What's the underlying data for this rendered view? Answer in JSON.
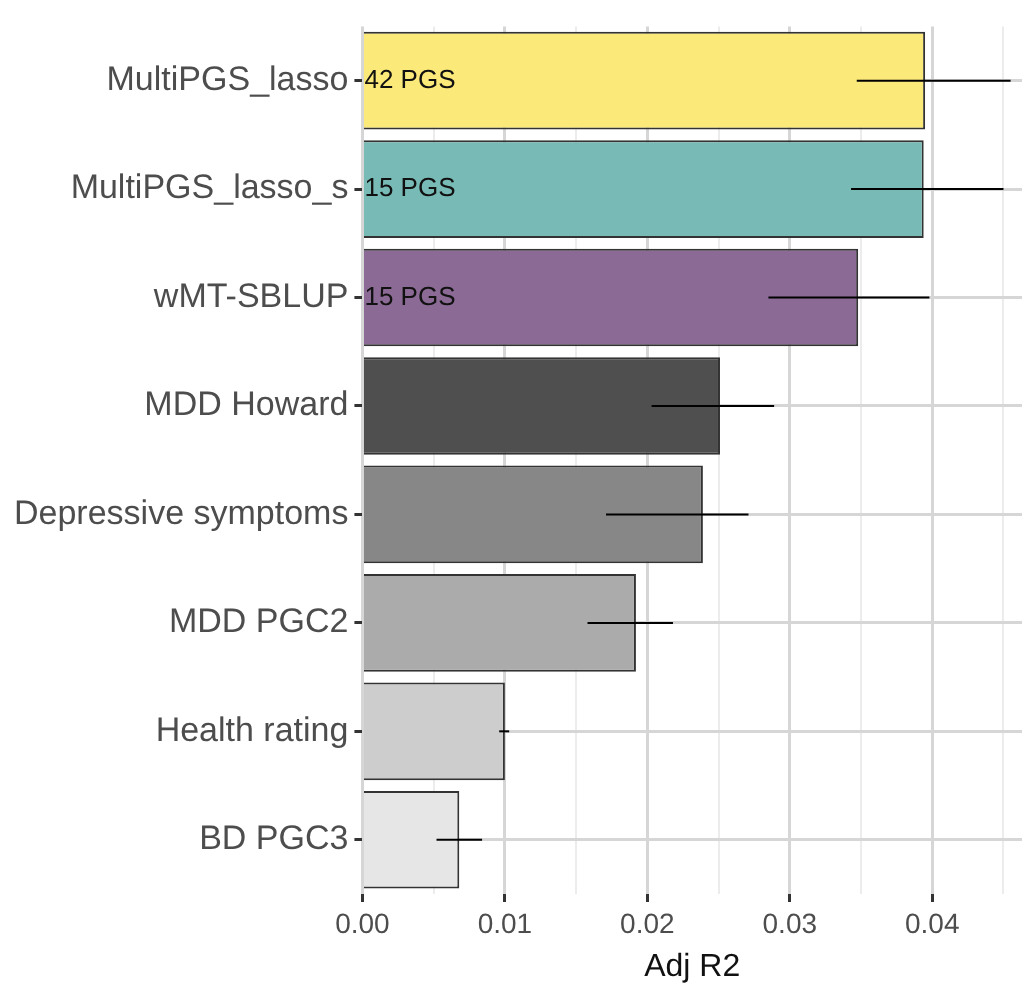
{
  "chart_data": {
    "type": "bar",
    "orientation": "horizontal",
    "xlabel": "Adj R2",
    "categories": [
      "MultiPGS_lasso",
      "MultiPGS_lasso_s",
      "wMT-SBLUP",
      "MDD Howard",
      "Depressive symptoms",
      "MDD PGC2",
      "Health rating",
      "BD PGC3"
    ],
    "values": [
      0.0395,
      0.0394,
      0.0348,
      0.0251,
      0.0239,
      0.0192,
      0.01,
      0.0068
    ],
    "colors": [
      "#fbe979",
      "#78bab6",
      "#8b6b95",
      "#4f4f4f",
      "#878787",
      "#ababab",
      "#cdcdcd",
      "#e6e6e6"
    ],
    "errors": [
      [
        0.0347,
        0.0455
      ],
      [
        0.0343,
        0.045
      ],
      [
        0.0285,
        0.0398
      ],
      [
        0.0203,
        0.0289
      ],
      [
        0.0171,
        0.0271
      ],
      [
        0.0158,
        0.0218
      ],
      [
        0.0096,
        0.0103
      ],
      [
        0.0052,
        0.0084
      ]
    ],
    "xlim": [
      0,
      0.0463
    ],
    "xticks": [
      {
        "value": 0,
        "label": "0.00"
      },
      {
        "value": 0.005,
        "label": null
      },
      {
        "value": 0.01,
        "label": "0.01"
      },
      {
        "value": 0.015,
        "label": null
      },
      {
        "value": 0.02,
        "label": "0.02"
      },
      {
        "value": 0.025,
        "label": null
      },
      {
        "value": 0.03,
        "label": "0.03"
      },
      {
        "value": 0.035,
        "label": null
      },
      {
        "value": 0.04,
        "label": "0.04"
      },
      {
        "value": 0.045,
        "label": null
      }
    ],
    "grid": true,
    "legend": false,
    "annotations": [
      {
        "text": "42 PGS",
        "y": "MultiPGS_lasso"
      },
      {
        "text": "15 PGS",
        "y": "MultiPGS_lasso_s"
      },
      {
        "text": "15 PGS",
        "y": "wMT-SBLUP"
      }
    ]
  }
}
